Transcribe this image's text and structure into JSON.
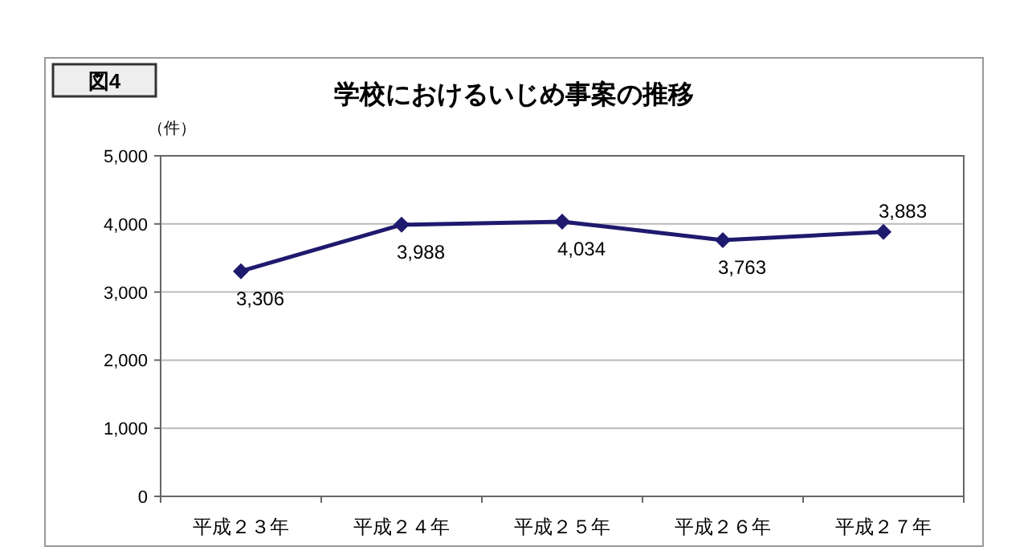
{
  "chart_data": {
    "type": "line",
    "title": "学校におけるいじめ事案の推移",
    "annotations": [
      "図4",
      "（件）"
    ],
    "categories": [
      "平成２３年",
      "平成２４年",
      "平成２５年",
      "平成２６年",
      "平成２７年"
    ],
    "series": [
      {
        "color": "#1f1a6e",
        "values": [
          3306,
          3988,
          4034,
          3763,
          3883
        ],
        "value_labels": [
          "3,306",
          "3,988",
          "4,034",
          "3,763",
          "3,883"
        ]
      }
    ],
    "ylim": [
      0,
      5000
    ],
    "yticks": [
      {
        "value": 0,
        "label": "0"
      },
      {
        "value": 1000,
        "label": "1,000"
      },
      {
        "value": 2000,
        "label": "2,000"
      },
      {
        "value": 3000,
        "label": "3,000"
      },
      {
        "value": 4000,
        "label": "4,000"
      },
      {
        "value": 5000,
        "label": "5,000"
      }
    ],
    "grid": "y",
    "marker": "diamond",
    "line_style": "solid"
  }
}
